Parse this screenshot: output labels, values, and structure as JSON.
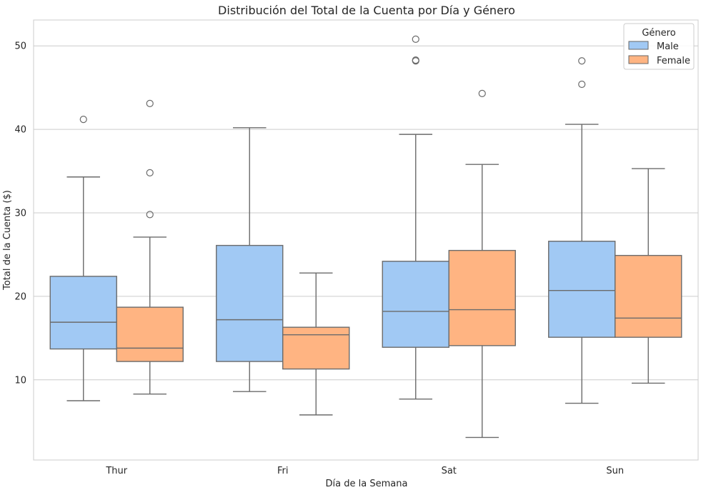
{
  "chart_data": {
    "type": "box",
    "title": "Distribución del Total de la Cuenta por Día y Género",
    "xlabel": "Día de la Semana",
    "ylabel": "Total de la Cuenta ($)",
    "ylim": [
      0.4,
      53.1
    ],
    "yticks": [
      10,
      20,
      30,
      40,
      50
    ],
    "grid": true,
    "categories": [
      "Thur",
      "Fri",
      "Sat",
      "Sun"
    ],
    "legend": {
      "title": "Género",
      "placement": "top-right"
    },
    "series": [
      {
        "name": "Male",
        "color": "#a1c9f4",
        "boxes": [
          {
            "whislo": 7.5,
            "q1": 13.7,
            "med": 16.9,
            "q3": 22.4,
            "whishi": 34.3,
            "fliers": [
              41.2
            ]
          },
          {
            "whislo": 8.6,
            "q1": 12.2,
            "med": 17.2,
            "q3": 26.1,
            "whishi": 40.2,
            "fliers": []
          },
          {
            "whislo": 7.7,
            "q1": 13.9,
            "med": 18.2,
            "q3": 24.2,
            "whishi": 39.4,
            "fliers": [
              48.2,
              48.3,
              50.8
            ]
          },
          {
            "whislo": 7.2,
            "q1": 15.1,
            "med": 20.7,
            "q3": 26.6,
            "whishi": 40.6,
            "fliers": [
              45.4,
              48.2
            ]
          }
        ]
      },
      {
        "name": "Female",
        "color": "#ffb482",
        "boxes": [
          {
            "whislo": 8.3,
            "q1": 12.2,
            "med": 13.8,
            "q3": 18.7,
            "whishi": 27.1,
            "fliers": [
              29.8,
              34.8,
              43.1
            ]
          },
          {
            "whislo": 5.8,
            "q1": 11.3,
            "med": 15.4,
            "q3": 16.3,
            "whishi": 22.8,
            "fliers": []
          },
          {
            "whislo": 3.1,
            "q1": 14.1,
            "med": 18.4,
            "q3": 25.5,
            "whishi": 35.8,
            "fliers": [
              44.3
            ]
          },
          {
            "whislo": 9.6,
            "q1": 15.1,
            "med": 17.4,
            "q3": 24.9,
            "whishi": 35.3,
            "fliers": []
          }
        ]
      }
    ]
  }
}
